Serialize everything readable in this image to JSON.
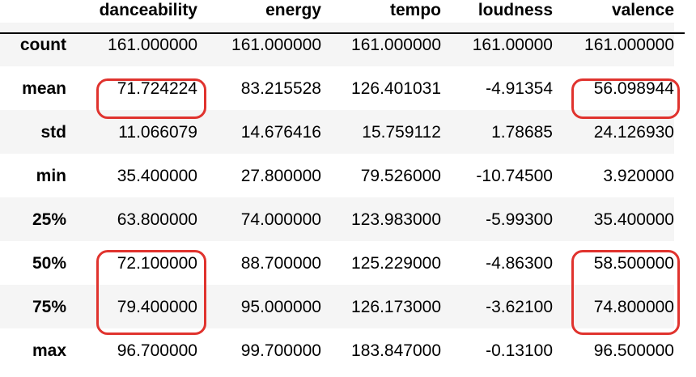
{
  "table": {
    "columns": [
      "danceability",
      "energy",
      "tempo",
      "loudness",
      "valence"
    ],
    "rows": [
      {
        "index": "count",
        "values": [
          "161.000000",
          "161.000000",
          "161.000000",
          "161.00000",
          "161.000000"
        ]
      },
      {
        "index": "mean",
        "values": [
          "71.724224",
          "83.215528",
          "126.401031",
          "-4.91354",
          "56.098944"
        ]
      },
      {
        "index": "std",
        "values": [
          "11.066079",
          "14.676416",
          "15.759112",
          "1.78685",
          "24.126930"
        ]
      },
      {
        "index": "min",
        "values": [
          "35.400000",
          "27.800000",
          "79.526000",
          "-10.74500",
          "3.920000"
        ]
      },
      {
        "index": "25%",
        "values": [
          "63.800000",
          "74.000000",
          "123.983000",
          "-5.99300",
          "35.400000"
        ]
      },
      {
        "index": "50%",
        "values": [
          "72.100000",
          "88.700000",
          "125.229000",
          "-4.86300",
          "58.500000"
        ]
      },
      {
        "index": "75%",
        "values": [
          "79.400000",
          "95.000000",
          "126.173000",
          "-3.62100",
          "74.800000"
        ]
      },
      {
        "index": "max",
        "values": [
          "96.700000",
          "99.700000",
          "183.847000",
          "-0.13100",
          "96.500000"
        ]
      }
    ]
  },
  "highlights": {
    "color": "#e0332e",
    "cells": [
      {
        "rows": [
          "mean"
        ],
        "column": "danceability"
      },
      {
        "rows": [
          "mean"
        ],
        "column": "valence"
      },
      {
        "rows": [
          "50%",
          "75%"
        ],
        "column": "danceability"
      },
      {
        "rows": [
          "50%",
          "75%"
        ],
        "column": "valence"
      }
    ]
  }
}
